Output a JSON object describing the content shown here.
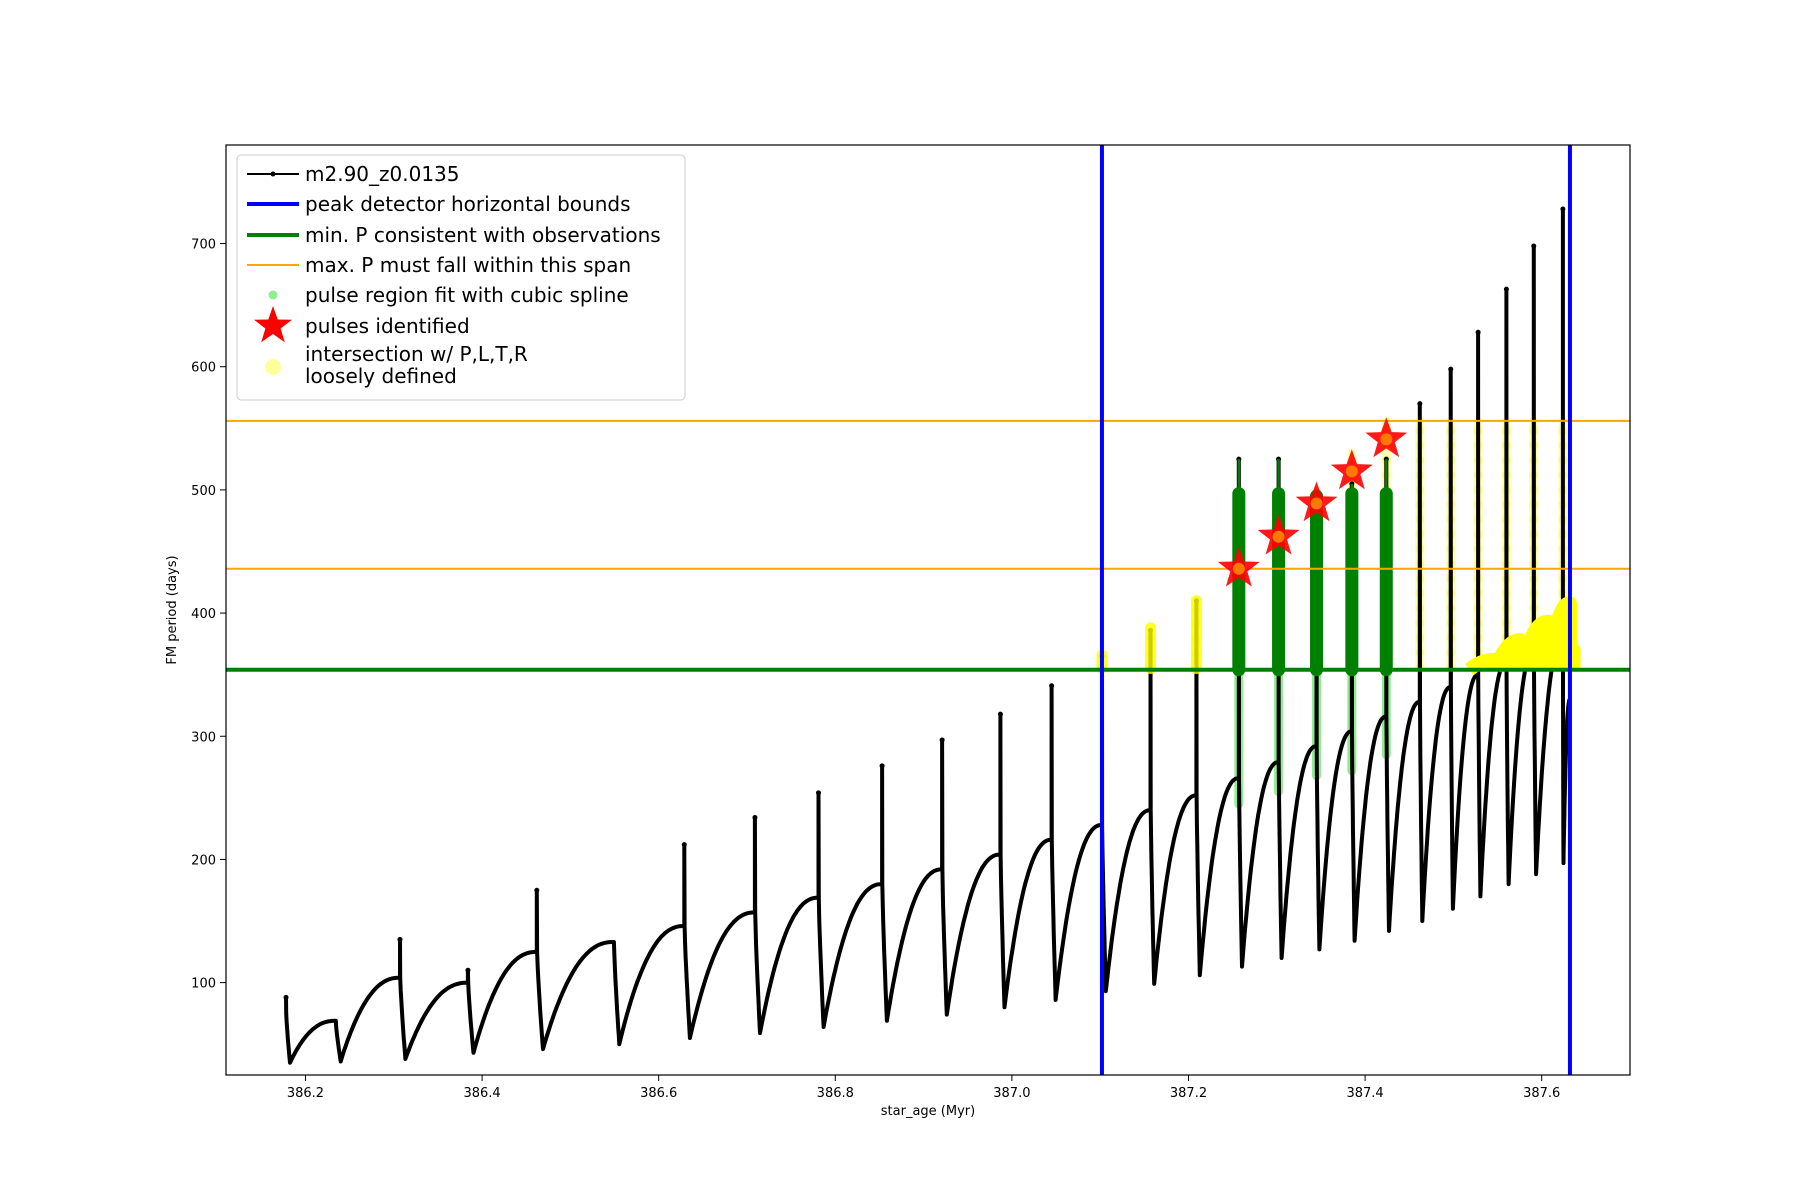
{
  "chart_data": {
    "type": "line",
    "xlabel": "star_age (Myr)",
    "ylabel": "FM period (days)",
    "xlim": [
      386.11,
      387.7
    ],
    "ylim": [
      25,
      780
    ],
    "x_ticks": [
      386.2,
      386.4,
      386.6,
      386.8,
      387.0,
      387.2,
      387.4,
      387.6
    ],
    "x_tick_labels": [
      "386.2",
      "386.4",
      "386.6",
      "386.8",
      "387.0",
      "387.2",
      "387.4",
      "387.6"
    ],
    "y_ticks": [
      100,
      200,
      300,
      400,
      500,
      600,
      700
    ],
    "y_tick_labels": [
      "100",
      "200",
      "300",
      "400",
      "500",
      "600",
      "700"
    ],
    "grid": false,
    "legend_position": "top-left",
    "legend": [
      {
        "label": "m2.90_z0.0135",
        "kind": "line-marker",
        "color": "#000000"
      },
      {
        "label": "peak detector horizontal bounds",
        "kind": "line",
        "color": "#0000ff"
      },
      {
        "label": "min. P consistent with observations",
        "kind": "line",
        "color": "#008000"
      },
      {
        "label": "max. P must fall within this span",
        "kind": "line",
        "color": "#ffa500"
      },
      {
        "label": "pulse region fit with cubic spline",
        "kind": "dot",
        "color": "#90ee90"
      },
      {
        "label": "pulses identified",
        "kind": "star",
        "color": "#ff0000"
      },
      {
        "label_lines": [
          "intersection w/ P,L,T,R",
          "loosely defined"
        ],
        "kind": "dot",
        "color": "#ffff99"
      }
    ],
    "series": {
      "track": {
        "color": "#000000",
        "cycles": [
          {
            "start": 386.178,
            "end": 386.234,
            "start_p": 75,
            "min_p": 35,
            "peak_p": 69,
            "spike_p": 88
          },
          {
            "start": 386.234,
            "end": 386.307,
            "start_p": 69,
            "min_p": 36,
            "peak_p": 104,
            "spike_p": 0
          },
          {
            "start": 386.307,
            "end": 386.384,
            "start_p": 104,
            "min_p": 38,
            "peak_p": 100,
            "spike_p": 135
          },
          {
            "start": 386.384,
            "end": 386.462,
            "start_p": 100,
            "min_p": 43,
            "peak_p": 125,
            "spike_p": 110
          },
          {
            "start": 386.462,
            "end": 386.549,
            "start_p": 125,
            "min_p": 46,
            "peak_p": 133,
            "spike_p": 175
          },
          {
            "start": 386.549,
            "end": 386.629,
            "start_p": 133,
            "min_p": 50,
            "peak_p": 146,
            "spike_p": 0
          },
          {
            "start": 386.629,
            "end": 386.709,
            "start_p": 146,
            "min_p": 55,
            "peak_p": 157,
            "spike_p": 212
          },
          {
            "start": 386.709,
            "end": 386.781,
            "start_p": 157,
            "min_p": 59,
            "peak_p": 169,
            "spike_p": 234
          },
          {
            "start": 386.781,
            "end": 386.853,
            "start_p": 169,
            "min_p": 64,
            "peak_p": 180,
            "spike_p": 254
          },
          {
            "start": 386.853,
            "end": 386.921,
            "start_p": 180,
            "min_p": 69,
            "peak_p": 192,
            "spike_p": 276
          },
          {
            "start": 386.921,
            "end": 386.987,
            "start_p": 192,
            "min_p": 74,
            "peak_p": 204,
            "spike_p": 297
          },
          {
            "start": 386.987,
            "end": 387.045,
            "start_p": 204,
            "min_p": 80,
            "peak_p": 216,
            "spike_p": 318
          },
          {
            "start": 387.045,
            "end": 387.102,
            "start_p": 216,
            "min_p": 86,
            "peak_p": 228,
            "spike_p": 341
          },
          {
            "start": 387.102,
            "end": 387.157,
            "start_p": 228,
            "min_p": 93,
            "peak_p": 240,
            "spike_p": 365
          },
          {
            "start": 387.157,
            "end": 387.209,
            "start_p": 240,
            "min_p": 99,
            "peak_p": 252,
            "spike_p": 386
          },
          {
            "start": 387.209,
            "end": 387.257,
            "start_p": 252,
            "min_p": 106,
            "peak_p": 266,
            "spike_p": 410
          },
          {
            "start": 387.257,
            "end": 387.302,
            "start_p": 266,
            "min_p": 113,
            "peak_p": 279,
            "spike_p": 525
          },
          {
            "start": 387.302,
            "end": 387.345,
            "start_p": 279,
            "min_p": 120,
            "peak_p": 292,
            "spike_p": 525
          },
          {
            "start": 387.345,
            "end": 387.385,
            "start_p": 292,
            "min_p": 127,
            "peak_p": 304,
            "spike_p": 495
          },
          {
            "start": 387.385,
            "end": 387.424,
            "start_p": 304,
            "min_p": 134,
            "peak_p": 316,
            "spike_p": 505
          },
          {
            "start": 387.424,
            "end": 387.462,
            "start_p": 316,
            "min_p": 142,
            "peak_p": 328,
            "spike_p": 525
          },
          {
            "start": 387.462,
            "end": 387.497,
            "start_p": 328,
            "min_p": 150,
            "peak_p": 340,
            "spike_p": 570
          },
          {
            "start": 387.497,
            "end": 387.528,
            "start_p": 340,
            "min_p": 160,
            "peak_p": 350,
            "spike_p": 598
          },
          {
            "start": 387.528,
            "end": 387.56,
            "start_p": 350,
            "min_p": 170,
            "peak_p": 360,
            "spike_p": 628
          },
          {
            "start": 387.56,
            "end": 387.591,
            "start_p": 360,
            "min_p": 180,
            "peak_p": 370,
            "spike_p": 663
          },
          {
            "start": 387.591,
            "end": 387.624,
            "start_p": 370,
            "min_p": 188,
            "peak_p": 380,
            "spike_p": 698
          },
          {
            "start": 387.624,
            "end": 387.632,
            "start_p": 380,
            "min_p": 197,
            "peak_p": 330,
            "spike_p": 728
          }
        ]
      },
      "peak_detector_bounds": {
        "color": "#0000ff",
        "x": [
          387.102,
          387.632
        ]
      },
      "min_period": {
        "color": "#008000",
        "y": 354
      },
      "max_period_span": {
        "color": "#ffa500",
        "y": [
          436,
          556
        ]
      },
      "pulse_regions": {
        "color_light": "#90ee90",
        "color_dark": "#008000",
        "regions": [
          {
            "x": 387.257,
            "y_low": 245,
            "y_high": 525,
            "y_dark_low": 354,
            "y_dark_high": 497
          },
          {
            "x": 387.302,
            "y_low": 255,
            "y_high": 525,
            "y_dark_low": 354,
            "y_dark_high": 497
          },
          {
            "x": 387.345,
            "y_low": 268,
            "y_high": 495,
            "y_dark_low": 354,
            "y_dark_high": 495
          },
          {
            "x": 387.385,
            "y_low": 272,
            "y_high": 505,
            "y_dark_low": 354,
            "y_dark_high": 497
          },
          {
            "x": 387.424,
            "y_low": 285,
            "y_high": 525,
            "y_dark_low": 354,
            "y_dark_high": 497
          }
        ]
      },
      "pulses_identified": {
        "color": "#ff0000",
        "points": [
          {
            "x": 387.257,
            "y": 436
          },
          {
            "x": 387.302,
            "y": 462
          },
          {
            "x": 387.345,
            "y": 489
          },
          {
            "x": 387.385,
            "y": 515
          },
          {
            "x": 387.424,
            "y": 541
          }
        ]
      },
      "intersection": {
        "color": "#ffff00",
        "color_faint": "#ffff99",
        "columns": [
          {
            "x": 387.102,
            "y_low": 355,
            "y_high": 366
          },
          {
            "x": 387.157,
            "y_low": 355,
            "y_high": 388
          },
          {
            "x": 387.209,
            "y_low": 355,
            "y_high": 410
          },
          {
            "x": 387.385,
            "y_low": 500,
            "y_high": 530
          },
          {
            "x": 387.424,
            "y_low": 500,
            "y_high": 556
          },
          {
            "x": 387.462,
            "y_low": 356,
            "y_high": 556
          },
          {
            "x": 387.497,
            "y_low": 356,
            "y_high": 556
          },
          {
            "x": 387.528,
            "y_low": 356,
            "y_high": 556
          },
          {
            "x": 387.56,
            "y_low": 356,
            "y_high": 556
          },
          {
            "x": 387.591,
            "y_low": 356,
            "y_high": 556
          },
          {
            "x": 387.624,
            "y_low": 356,
            "y_high": 556
          }
        ],
        "bright_arcs": [
          {
            "start": 387.518,
            "end": 387.547,
            "y_top": 362
          },
          {
            "start": 387.547,
            "end": 387.576,
            "y_top": 378
          },
          {
            "start": 387.576,
            "end": 387.607,
            "y_top": 393
          },
          {
            "start": 387.607,
            "end": 387.632,
            "y_top": 408
          },
          {
            "start": 387.628,
            "end": 387.636,
            "y_top": 370
          }
        ]
      }
    }
  }
}
